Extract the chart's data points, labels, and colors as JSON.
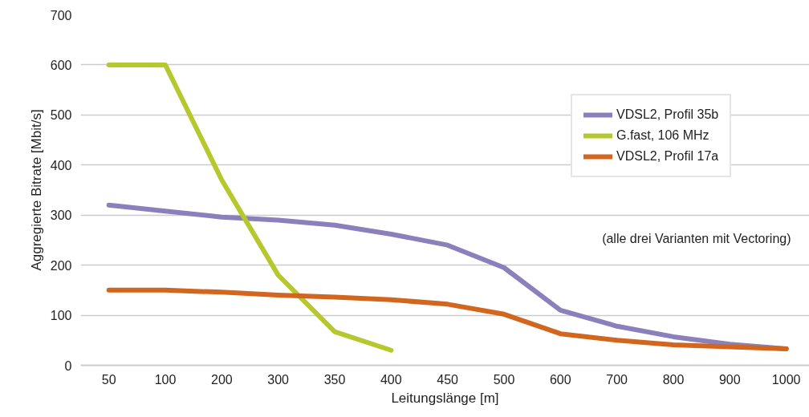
{
  "chart_data": {
    "type": "line",
    "xlabel": "Leitungslänge [m]",
    "ylabel": "Aggregierte Bitrate [Mbit/s]",
    "categories": [
      "50",
      "100",
      "200",
      "300",
      "350",
      "400",
      "450",
      "500",
      "600",
      "700",
      "800",
      "900",
      "1000"
    ],
    "series": [
      {
        "name": "VDSL2, Profil 35b",
        "color": "#8b80bb",
        "values": [
          320,
          308,
          296,
          290,
          280,
          262,
          240,
          195,
          110,
          78,
          57,
          42,
          33
        ]
      },
      {
        "name": "G.fast, 106 MHz",
        "color": "#b5c92e",
        "values": [
          600,
          600,
          370,
          180,
          67,
          30,
          null,
          null,
          null,
          null,
          null,
          null,
          null
        ]
      },
      {
        "name": "VDSL2, Profil 17a",
        "color": "#d2661e",
        "values": [
          150,
          150,
          146,
          140,
          136,
          131,
          122,
          102,
          63,
          50,
          41,
          37,
          33
        ]
      }
    ],
    "ylim": [
      0,
      700
    ],
    "yticks": [
      0,
      100,
      200,
      300,
      400,
      500,
      600,
      700
    ],
    "grid": "y",
    "legend": "right",
    "marker": "none",
    "line_style": "solid",
    "annotations": [
      "(alle drei Varianten mit Vectoring)"
    ]
  }
}
